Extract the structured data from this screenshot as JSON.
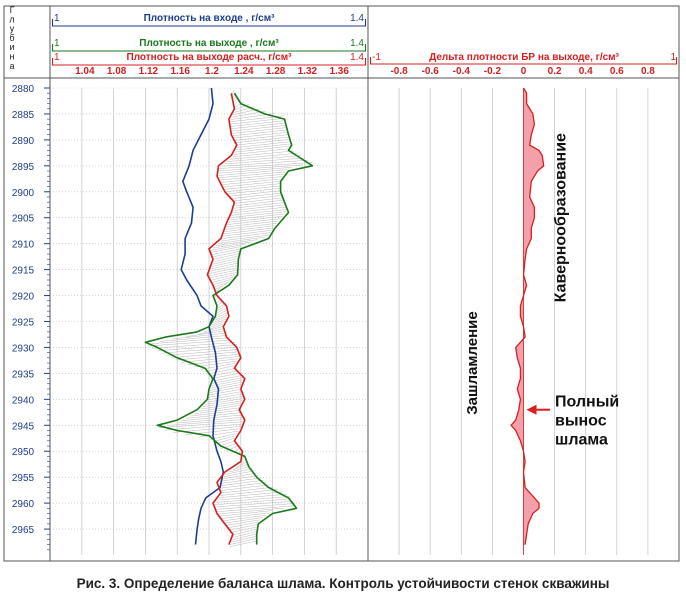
{
  "caption": "Рис. 3. Определение баланса шлама. Контроль устойчивости стенок скважины",
  "chart_data": [
    {
      "type": "line",
      "depth_axis": {
        "label": "Глубина",
        "label_letters": [
          "Г",
          "л",
          "у",
          "б",
          "и",
          "н",
          "а"
        ],
        "range": [
          2880,
          2970
        ],
        "ticks": [
          2880,
          2885,
          2890,
          2895,
          2900,
          2905,
          2910,
          2915,
          2920,
          2925,
          2930,
          2935,
          2940,
          2945,
          2950,
          2955,
          2960,
          2965
        ]
      },
      "scales": [
        {
          "name": "Плотность на входе , г/см³",
          "min_label": "1",
          "max_label": "1.4",
          "color": "#1f3d8f"
        },
        {
          "name": "Плотность на выходе , г/см³",
          "min_label": "1",
          "max_label": "1.4",
          "color": "#1a7a1a"
        },
        {
          "name": "Плотность на выходе расч., г/см³",
          "min_label": "1",
          "max_label": "1.4",
          "color": "#d42020"
        }
      ],
      "x_range": [
        1.0,
        1.4
      ],
      "x_tick_labels": [
        "1.04",
        "1.08",
        "1.12",
        "1.16",
        "1.2",
        "1.24",
        "1.28",
        "1.32",
        "1.36"
      ],
      "x_ticks": [
        1.04,
        1.08,
        1.12,
        1.16,
        1.2,
        1.24,
        1.28,
        1.32,
        1.36
      ],
      "series": [
        {
          "name": "Плотность на входе , г/см³",
          "color": "#1f3d8f",
          "points": [
            [
              2880,
              1.203
            ],
            [
              2883,
              1.205
            ],
            [
              2886,
              1.2
            ],
            [
              2889,
              1.19
            ],
            [
              2892,
              1.18
            ],
            [
              2895,
              1.175
            ],
            [
              2898,
              1.167
            ],
            [
              2900,
              1.172
            ],
            [
              2903,
              1.18
            ],
            [
              2906,
              1.178
            ],
            [
              2909,
              1.17
            ],
            [
              2912,
              1.17
            ],
            [
              2915,
              1.165
            ],
            [
              2917,
              1.172
            ],
            [
              2920,
              1.185
            ],
            [
              2922,
              1.19
            ],
            [
              2924,
              1.205
            ],
            [
              2926,
              1.2
            ],
            [
              2928,
              1.203
            ],
            [
              2931,
              1.208
            ],
            [
              2934,
              1.21
            ],
            [
              2936,
              1.206
            ],
            [
              2938,
              1.212
            ],
            [
              2941,
              1.21
            ],
            [
              2944,
              1.206
            ],
            [
              2947,
              1.205
            ],
            [
              2950,
              1.21
            ],
            [
              2952,
              1.215
            ],
            [
              2954,
              1.218
            ],
            [
              2957,
              1.214
            ],
            [
              2959,
              1.196
            ],
            [
              2961,
              1.19
            ],
            [
              2963,
              1.187
            ],
            [
              2965,
              1.185
            ],
            [
              2968,
              1.183
            ]
          ]
        },
        {
          "name": "Плотность на выходе , г/см³",
          "color": "#1a7a1a",
          "points": [
            [
              2881,
              1.232
            ],
            [
              2883,
              1.24
            ],
            [
              2885,
              1.27
            ],
            [
              2886,
              1.295
            ],
            [
              2889,
              1.3
            ],
            [
              2891,
              1.304
            ],
            [
              2892,
              1.3
            ],
            [
              2893,
              1.31
            ],
            [
              2895,
              1.33
            ],
            [
              2896,
              1.3
            ],
            [
              2898,
              1.29
            ],
            [
              2900,
              1.29
            ],
            [
              2902,
              1.295
            ],
            [
              2904,
              1.3
            ],
            [
              2907,
              1.283
            ],
            [
              2909,
              1.275
            ],
            [
              2911,
              1.24
            ],
            [
              2913,
              1.237
            ],
            [
              2916,
              1.236
            ],
            [
              2918,
              1.225
            ],
            [
              2920,
              1.205
            ],
            [
              2922,
              1.21
            ],
            [
              2924,
              1.208
            ],
            [
              2926,
              1.2
            ],
            [
              2927,
              1.185
            ],
            [
              2928,
              1.145
            ],
            [
              2929,
              1.12
            ],
            [
              2930,
              1.135
            ],
            [
              2932,
              1.16
            ],
            [
              2934,
              1.195
            ],
            [
              2936,
              1.205
            ],
            [
              2938,
              1.2
            ],
            [
              2940,
              1.198
            ],
            [
              2942,
              1.185
            ],
            [
              2944,
              1.16
            ],
            [
              2945,
              1.135
            ],
            [
              2946,
              1.16
            ],
            [
              2947,
              1.2
            ],
            [
              2949,
              1.215
            ],
            [
              2951,
              1.245
            ],
            [
              2953,
              1.25
            ],
            [
              2955,
              1.26
            ],
            [
              2957,
              1.275
            ],
            [
              2959,
              1.3
            ],
            [
              2961,
              1.31
            ],
            [
              2962,
              1.28
            ],
            [
              2964,
              1.262
            ],
            [
              2966,
              1.26
            ],
            [
              2968,
              1.26
            ]
          ]
        },
        {
          "name": "Плотность на выходе расч., г/см³",
          "color": "#d42020",
          "points": [
            [
              2881,
              1.228
            ],
            [
              2884,
              1.232
            ],
            [
              2886,
              1.225
            ],
            [
              2889,
              1.228
            ],
            [
              2891,
              1.235
            ],
            [
              2893,
              1.228
            ],
            [
              2895,
              1.212
            ],
            [
              2897,
              1.21
            ],
            [
              2900,
              1.22
            ],
            [
              2902,
              1.232
            ],
            [
              2904,
              1.228
            ],
            [
              2906,
              1.222
            ],
            [
              2909,
              1.215
            ],
            [
              2911,
              1.2
            ],
            [
              2913,
              1.205
            ],
            [
              2916,
              1.198
            ],
            [
              2918,
              1.205
            ],
            [
              2920,
              1.21
            ],
            [
              2922,
              1.222
            ],
            [
              2924,
              1.225
            ],
            [
              2926,
              1.218
            ],
            [
              2928,
              1.222
            ],
            [
              2930,
              1.235
            ],
            [
              2932,
              1.24
            ],
            [
              2934,
              1.232
            ],
            [
              2936,
              1.245
            ],
            [
              2938,
              1.24
            ],
            [
              2940,
              1.245
            ],
            [
              2942,
              1.238
            ],
            [
              2944,
              1.245
            ],
            [
              2946,
              1.24
            ],
            [
              2948,
              1.232
            ],
            [
              2950,
              1.242
            ],
            [
              2952,
              1.24
            ],
            [
              2954,
              1.22
            ],
            [
              2956,
              1.21
            ],
            [
              2958,
              1.215
            ],
            [
              2960,
              1.205
            ],
            [
              2962,
              1.21
            ],
            [
              2964,
              1.22
            ],
            [
              2966,
              1.23
            ],
            [
              2968,
              1.225
            ]
          ]
        }
      ]
    },
    {
      "type": "area",
      "title": "Дельта плотности БР на выходе, г/см³",
      "min_label": "-1",
      "max_label": "1",
      "x_range": [
        -1,
        1
      ],
      "x_tick_labels": [
        "-0.8",
        "-0.6",
        "-0.4",
        "-0.2",
        "0",
        "0.2",
        "0.4",
        "0.6",
        "0.8"
      ],
      "x_ticks": [
        -0.8,
        -0.6,
        -0.4,
        -0.2,
        0,
        0.2,
        0.4,
        0.6,
        0.8
      ],
      "series": [
        {
          "name": "Дельта плотности БР на выходе, г/см³",
          "color": "#d42020",
          "fill": "#f4a0aa",
          "points": [
            [
              2880,
              0
            ],
            [
              2881,
              0.02
            ],
            [
              2883,
              0.02
            ],
            [
              2885,
              0.06
            ],
            [
              2887,
              0.07
            ],
            [
              2889,
              0.05
            ],
            [
              2891,
              0.04
            ],
            [
              2892,
              0.1
            ],
            [
              2893,
              0.12
            ],
            [
              2895,
              0.13
            ],
            [
              2896,
              0.09
            ],
            [
              2898,
              0.05
            ],
            [
              2901,
              0.04
            ],
            [
              2903,
              0.07
            ],
            [
              2905,
              0.07
            ],
            [
              2907,
              0.05
            ],
            [
              2909,
              0.05
            ],
            [
              2911,
              0.02
            ],
            [
              2913,
              0.01
            ],
            [
              2916,
              0.0
            ],
            [
              2918,
              0.02
            ],
            [
              2920,
              0.0
            ],
            [
              2922,
              -0.02
            ],
            [
              2924,
              -0.02
            ],
            [
              2926,
              0.0
            ],
            [
              2928,
              0.01
            ],
            [
              2930,
              -0.05
            ],
            [
              2932,
              -0.04
            ],
            [
              2934,
              -0.02
            ],
            [
              2936,
              -0.02
            ],
            [
              2938,
              -0.04
            ],
            [
              2940,
              -0.02
            ],
            [
              2942,
              -0.03
            ],
            [
              2944,
              -0.05
            ],
            [
              2945,
              -0.08
            ],
            [
              2946,
              -0.05
            ],
            [
              2948,
              -0.02
            ],
            [
              2950,
              0.0
            ],
            [
              2952,
              0.01
            ],
            [
              2954,
              0.0
            ],
            [
              2957,
              0.01
            ],
            [
              2959,
              0.07
            ],
            [
              2960,
              0.1
            ],
            [
              2961,
              0.1
            ],
            [
              2962,
              0.06
            ],
            [
              2964,
              0.03
            ],
            [
              2966,
              0.02
            ],
            [
              2968,
              0.01
            ]
          ]
        }
      ],
      "annotations": [
        {
          "text": "Кавернообразование",
          "depth": 2905,
          "x": 0.27
        },
        {
          "text": "Зашламление",
          "depth": 2933,
          "x": -0.3
        },
        {
          "text": "Полный вынос шлама",
          "lines": [
            "Полный",
            "вынос",
            "шлама"
          ],
          "depth": 2942,
          "x": 0.15
        }
      ]
    }
  ]
}
